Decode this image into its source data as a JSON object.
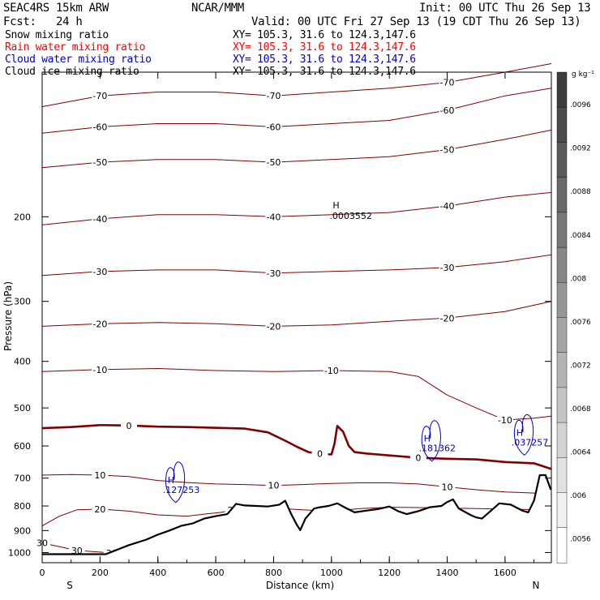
{
  "header": {
    "model": "SEAC4RS 15km ARW",
    "center": "NCAR/MMM",
    "init": "Init: 00 UTC Thu 26 Sep 13",
    "fcst": "Fcst:   24 h",
    "valid": "Valid: 00 UTC Fri 27 Sep 13 (19 CDT Thu 26 Sep 13)"
  },
  "legend": [
    {
      "name": "Snow mixing ratio",
      "xy": "XY= 105.3, 31.6 to 124.3,147.6",
      "color": "#000000"
    },
    {
      "name": "Rain water mixing ratio",
      "xy": "XY= 105.3, 31.6 to 124.3,147.6",
      "color": "#ff0000"
    },
    {
      "name": "Cloud water mixing ratio",
      "xy": "XY= 105.3, 31.6 to 124.3,147.6",
      "color": "#0000cc"
    },
    {
      "name": "Cloud ice mixing ratio",
      "xy": "XY= 105.3, 31.6 to 124.3,147.6",
      "color": "#000000"
    }
  ],
  "chart_data": {
    "type": "line",
    "xlabel": "Distance (km)",
    "ylabel": "Pressure (hPa)",
    "xlim": [
      0,
      1760
    ],
    "ylim": [
      1050,
      100
    ],
    "y_scale": "log",
    "x_ticks": [
      0,
      200,
      400,
      600,
      800,
      1000,
      1200,
      1400,
      1600
    ],
    "y_ticks": [
      200,
      300,
      400,
      500,
      600,
      700,
      800,
      900,
      1000
    ],
    "end_labels": {
      "left": "S",
      "right": "N"
    },
    "colorbar": {
      "unit": "g kg⁻¹",
      "ticks": [
        ".0056",
        ".006",
        ".0064",
        ".0068",
        ".0072",
        ".0076",
        ".008",
        ".0084",
        ".0088",
        ".0092",
        ".0096"
      ]
    },
    "terrain": [
      [
        0,
        1008
      ],
      [
        220,
        1008
      ],
      [
        300,
        965
      ],
      [
        360,
        940
      ],
      [
        400,
        918
      ],
      [
        440,
        900
      ],
      [
        480,
        880
      ],
      [
        520,
        870
      ],
      [
        560,
        850
      ],
      [
        600,
        840
      ],
      [
        640,
        832
      ],
      [
        670,
        792
      ],
      [
        700,
        798
      ],
      [
        740,
        800
      ],
      [
        780,
        802
      ],
      [
        820,
        795
      ],
      [
        840,
        780
      ],
      [
        860,
        830
      ],
      [
        880,
        875
      ],
      [
        892,
        898
      ],
      [
        910,
        850
      ],
      [
        940,
        810
      ],
      [
        960,
        805
      ],
      [
        990,
        800
      ],
      [
        1020,
        790
      ],
      [
        1050,
        808
      ],
      [
        1080,
        825
      ],
      [
        1120,
        818
      ],
      [
        1160,
        812
      ],
      [
        1200,
        802
      ],
      [
        1230,
        820
      ],
      [
        1260,
        832
      ],
      [
        1300,
        820
      ],
      [
        1340,
        805
      ],
      [
        1380,
        800
      ],
      [
        1400,
        785
      ],
      [
        1420,
        775
      ],
      [
        1440,
        810
      ],
      [
        1480,
        835
      ],
      [
        1500,
        845
      ],
      [
        1520,
        850
      ],
      [
        1560,
        810
      ],
      [
        1580,
        790
      ],
      [
        1620,
        795
      ],
      [
        1660,
        818
      ],
      [
        1680,
        825
      ],
      [
        1700,
        780
      ],
      [
        1720,
        690
      ],
      [
        1740,
        690
      ],
      [
        1758,
        740
      ]
    ],
    "temperature_contours": [
      {
        "label": "-70",
        "points": [
          [
            0,
            118
          ],
          [
            200,
            112
          ],
          [
            400,
            110
          ],
          [
            600,
            110
          ],
          [
            800,
            112
          ],
          [
            1000,
            110
          ],
          [
            1200,
            108
          ],
          [
            1400,
            105
          ],
          [
            1600,
            100
          ],
          [
            1760,
            96
          ]
        ]
      },
      {
        "label": "-60",
        "points": [
          [
            0,
            134
          ],
          [
            200,
            130
          ],
          [
            400,
            128
          ],
          [
            600,
            128
          ],
          [
            800,
            130
          ],
          [
            1000,
            128
          ],
          [
            1200,
            126
          ],
          [
            1400,
            120
          ],
          [
            1600,
            112
          ],
          [
            1760,
            108
          ]
        ]
      },
      {
        "label": "-50",
        "points": [
          [
            0,
            158
          ],
          [
            200,
            154
          ],
          [
            400,
            152
          ],
          [
            600,
            152
          ],
          [
            800,
            154
          ],
          [
            1000,
            152
          ],
          [
            1200,
            150
          ],
          [
            1400,
            145
          ],
          [
            1600,
            138
          ],
          [
            1760,
            132
          ]
        ]
      },
      {
        "label": "-40",
        "points": [
          [
            0,
            208
          ],
          [
            200,
            202
          ],
          [
            400,
            198
          ],
          [
            600,
            198
          ],
          [
            800,
            200
          ],
          [
            1000,
            198
          ],
          [
            1200,
            196
          ],
          [
            1400,
            190
          ],
          [
            1600,
            182
          ],
          [
            1760,
            178
          ]
        ]
      },
      {
        "label": "-30",
        "points": [
          [
            0,
            265
          ],
          [
            200,
            260
          ],
          [
            400,
            258
          ],
          [
            600,
            258
          ],
          [
            800,
            262
          ],
          [
            1000,
            260
          ],
          [
            1200,
            258
          ],
          [
            1400,
            255
          ],
          [
            1600,
            248
          ],
          [
            1760,
            240
          ]
        ]
      },
      {
        "label": "-20",
        "points": [
          [
            0,
            338
          ],
          [
            200,
            334
          ],
          [
            400,
            332
          ],
          [
            600,
            334
          ],
          [
            800,
            338
          ],
          [
            1000,
            336
          ],
          [
            1200,
            330
          ],
          [
            1400,
            325
          ],
          [
            1600,
            315
          ],
          [
            1760,
            300
          ]
        ]
      },
      {
        "label": "-10",
        "points": [
          [
            0,
            420
          ],
          [
            200,
            416
          ],
          [
            400,
            414
          ],
          [
            600,
            418
          ],
          [
            800,
            420
          ],
          [
            1000,
            418
          ],
          [
            1200,
            420
          ],
          [
            1300,
            430
          ],
          [
            1400,
            470
          ],
          [
            1500,
            500
          ],
          [
            1600,
            530
          ],
          [
            1700,
            525
          ],
          [
            1760,
            520
          ]
        ]
      },
      {
        "label": "0",
        "points": [
          [
            0,
            551
          ],
          [
            100,
            548
          ],
          [
            200,
            543
          ],
          [
            300,
            544
          ],
          [
            400,
            547
          ],
          [
            500,
            548
          ],
          [
            700,
            552
          ],
          [
            780,
            562
          ],
          [
            840,
            585
          ],
          [
            880,
            602
          ],
          [
            920,
            618
          ],
          [
            960,
            623
          ],
          [
            1000,
            625
          ],
          [
            1010,
            595
          ],
          [
            1020,
            545
          ],
          [
            1040,
            560
          ],
          [
            1060,
            600
          ],
          [
            1080,
            618
          ],
          [
            1120,
            622
          ],
          [
            1200,
            628
          ],
          [
            1300,
            635
          ],
          [
            1400,
            638
          ],
          [
            1500,
            640
          ],
          [
            1600,
            648
          ],
          [
            1700,
            652
          ],
          [
            1760,
            670
          ]
        ]
      },
      {
        "label": "10",
        "points": [
          [
            0,
            690
          ],
          [
            100,
            688
          ],
          [
            200,
            690
          ],
          [
            300,
            695
          ],
          [
            400,
            708
          ],
          [
            500,
            715
          ],
          [
            600,
            720
          ],
          [
            700,
            722
          ],
          [
            800,
            725
          ],
          [
            900,
            722
          ],
          [
            1000,
            718
          ],
          [
            1100,
            716
          ],
          [
            1200,
            716
          ],
          [
            1300,
            720
          ],
          [
            1400,
            730
          ],
          [
            1500,
            740
          ],
          [
            1600,
            748
          ],
          [
            1700,
            752
          ],
          [
            1760,
            755
          ]
        ]
      },
      {
        "label": "20",
        "points": [
          [
            0,
            880
          ],
          [
            60,
            840
          ],
          [
            120,
            815
          ],
          [
            200,
            812
          ],
          [
            300,
            820
          ],
          [
            400,
            835
          ],
          [
            500,
            840
          ],
          [
            560,
            832
          ],
          [
            620,
            825
          ],
          [
            660,
            815
          ],
          [
            700,
            812
          ],
          [
            800,
            808
          ],
          [
            900,
            815
          ],
          [
            1000,
            820
          ],
          [
            1100,
            810
          ],
          [
            1200,
            805
          ],
          [
            1300,
            806
          ],
          [
            1400,
            808
          ],
          [
            1500,
            810
          ],
          [
            1600,
            812
          ],
          [
            1700,
            814
          ],
          [
            1760,
            815
          ]
        ]
      },
      {
        "label": "30",
        "points": [
          [
            0,
            955
          ],
          [
            120,
            990
          ],
          [
            240,
            1002
          ]
        ]
      }
    ],
    "cloud_water_maxima": [
      {
        "label": ".127253",
        "x": 445,
        "p": 728
      },
      {
        "label": ".181362",
        "x": 1330,
        "p": 597
      },
      {
        "label": ".037257",
        "x": 1650,
        "p": 580
      }
    ],
    "cloud_ice_maximum": {
      "label": ".0003552",
      "x": 1010,
      "p": 198
    }
  }
}
